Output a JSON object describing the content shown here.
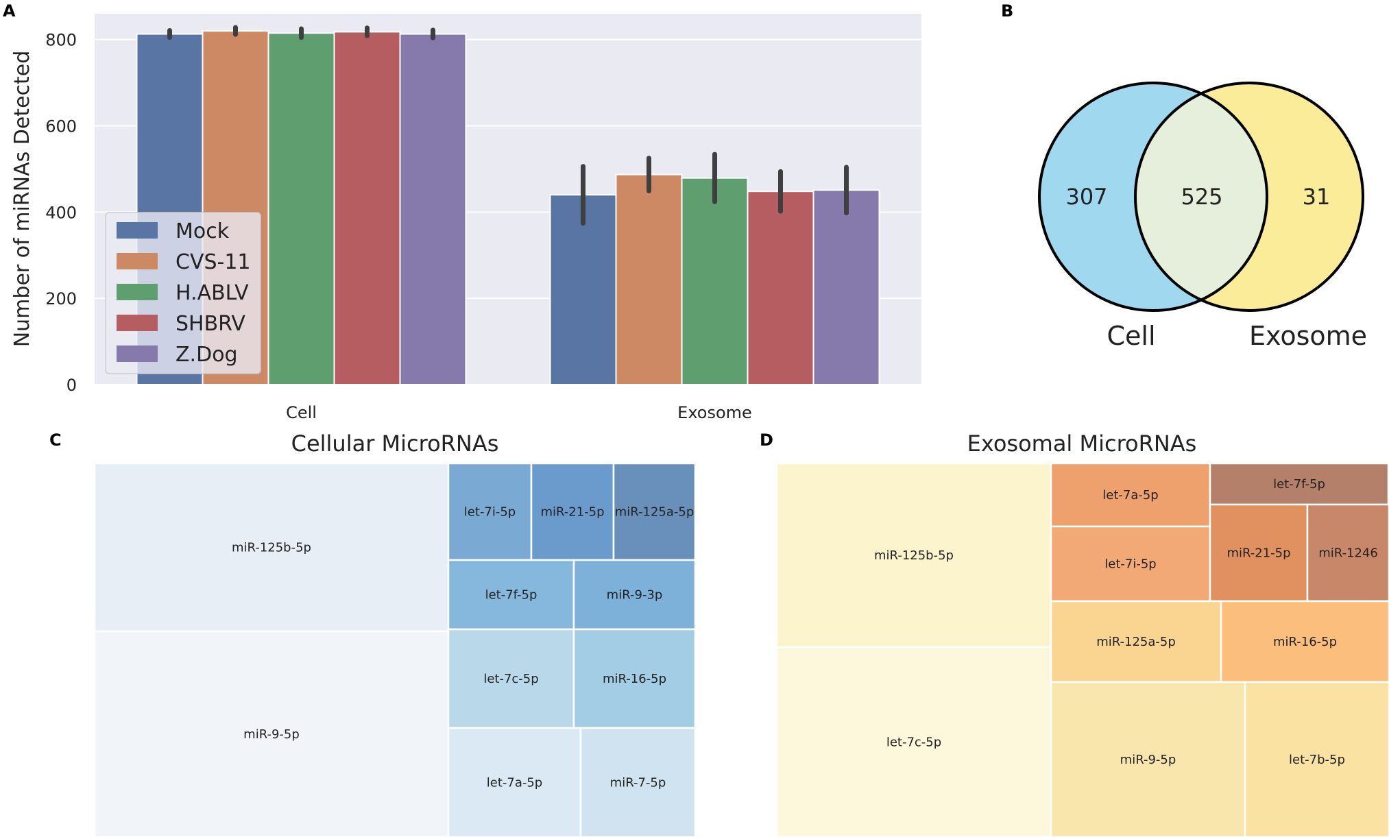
{
  "panel_labels": {
    "a": "A",
    "b": "B",
    "c": "C",
    "d": "D"
  },
  "chart_data": [
    {
      "panel": "A",
      "type": "bar",
      "ylabel": "Number of miRNAs Detected",
      "xlabel": "",
      "ylim": [
        0,
        860
      ],
      "yticks": [
        0,
        200,
        400,
        600,
        800
      ],
      "grid": true,
      "legend_position": "center-left",
      "categories": [
        "Cell",
        "Exosome"
      ],
      "series": [
        {
          "name": "Mock",
          "color": "#5875a4",
          "values": [
            813,
            440
          ],
          "err": [
            8,
            66
          ]
        },
        {
          "name": "CVS-11",
          "color": "#cc8963",
          "values": [
            820,
            487
          ],
          "err": [
            8,
            38
          ]
        },
        {
          "name": "H.ABLV",
          "color": "#5f9e6e",
          "values": [
            815,
            479
          ],
          "err": [
            10,
            55
          ]
        },
        {
          "name": "SHBRV",
          "color": "#b55d60",
          "values": [
            818,
            448
          ],
          "err": [
            9,
            46
          ]
        },
        {
          "name": "Z.Dog",
          "color": "#857aab",
          "values": [
            813,
            451
          ],
          "err": [
            9,
            53
          ]
        }
      ]
    },
    {
      "panel": "B",
      "type": "venn",
      "sets": [
        "Cell",
        "Exosome"
      ],
      "only_cell": "307",
      "both": "525",
      "only_exosome": "31",
      "colors": {
        "cell": "#a0d8f0",
        "exosome": "#fbec99",
        "overlap": "#e6efdc"
      }
    },
    {
      "panel": "C",
      "type": "treemap",
      "title": "Cellular MicroRNAs",
      "palette": "blues",
      "items": [
        {
          "label": "miR-125b-5p",
          "color": "#e8eef6"
        },
        {
          "label": "miR-9-5p",
          "color": "#f1f5fa"
        },
        {
          "label": "let-7i-5p",
          "color": "#7aaad4"
        },
        {
          "label": "miR-21-5p",
          "color": "#6b9bcc"
        },
        {
          "label": "miR-125a-5p",
          "color": "#6890bb"
        },
        {
          "label": "let-7f-5p",
          "color": "#86b8de"
        },
        {
          "label": "miR-9-3p",
          "color": "#7eb1da"
        },
        {
          "label": "let-7c-5p",
          "color": "#b9d8ea"
        },
        {
          "label": "miR-16-5p",
          "color": "#a2cde5"
        },
        {
          "label": "let-7a-5p",
          "color": "#dbe9f4"
        },
        {
          "label": "miR-7-5p",
          "color": "#cfe3f0"
        }
      ]
    },
    {
      "panel": "D",
      "type": "treemap",
      "title": "Exosomal MicroRNAs",
      "palette": "oranges",
      "items": [
        {
          "label": "miR-125b-5p",
          "color": "#fbf4cc"
        },
        {
          "label": "let-7c-5p",
          "color": "#fdf8dc"
        },
        {
          "label": "let-7a-5p",
          "color": "#eea06d"
        },
        {
          "label": "let-7f-5p",
          "color": "#b5806a"
        },
        {
          "label": "let-7i-5p",
          "color": "#f2a975"
        },
        {
          "label": "miR-21-5p",
          "color": "#e1915f"
        },
        {
          "label": "miR-1246",
          "color": "#c9876a"
        },
        {
          "label": "miR-125a-5p",
          "color": "#fad592"
        },
        {
          "label": "miR-16-5p",
          "color": "#fbbe7d"
        },
        {
          "label": "miR-9-5p",
          "color": "#f8e6ad"
        },
        {
          "label": "let-7b-5p",
          "color": "#f9e2a2"
        }
      ]
    }
  ]
}
